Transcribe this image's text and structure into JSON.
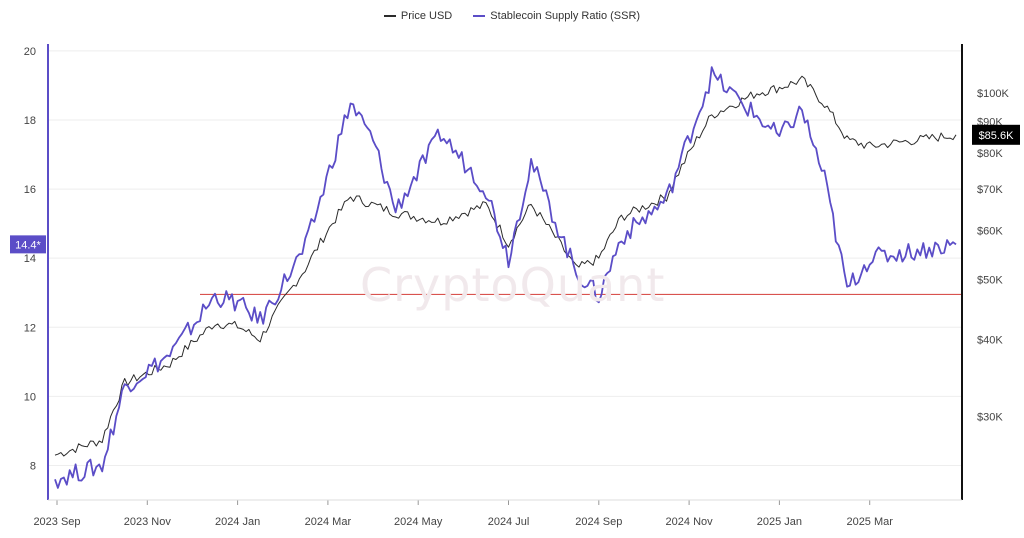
{
  "watermark": "CryptoQuant",
  "colors": {
    "price": "#2b2b2b",
    "ssr": "#5b4dc7",
    "ssr_axis": "#5b4dc7",
    "price_axis": "#111111",
    "reference_line": "#d9534f",
    "grid": "#eeeeee"
  },
  "chart_data": {
    "type": "line",
    "title": "",
    "xlabel": "",
    "ylabel": "",
    "legend_position": "top-center",
    "grid": true,
    "x_ticks": [
      "2023 Sep",
      "2023 Nov",
      "2024 Jan",
      "2024 Mar",
      "2024 May",
      "2024 Jul",
      "2024 Sep",
      "2024 Nov",
      "2025 Jan",
      "2025 Mar"
    ],
    "y_left": {
      "range": [
        7,
        20.2
      ],
      "ticks": [
        "8",
        "10",
        "12",
        "14",
        "16",
        "18",
        "20"
      ]
    },
    "y_right": {
      "scale": "log",
      "range": [
        22000,
        120000
      ],
      "ticks": [
        "$30K",
        "$40K",
        "$50K",
        "$60K",
        "$70K",
        "$80K",
        "$90K",
        "$100K"
      ]
    },
    "current_ssr_label": "14.4*",
    "current_price_label": "$85.6K",
    "reference_line_value": 12.95,
    "series": [
      {
        "name": "Price USD",
        "axis": "right",
        "points": [
          [
            "2023 Sep",
            26000
          ],
          [
            "2023 Oct",
            27500
          ],
          [
            "2023 Oct",
            34000
          ],
          [
            "2023 Nov",
            36500
          ],
          [
            "2023 Dec",
            42500
          ],
          [
            "2024 Jan",
            42000
          ],
          [
            "2024 Jan",
            40000
          ],
          [
            "2024 Feb",
            52000
          ],
          [
            "2024 Mar",
            68000
          ],
          [
            "2024 Apr",
            64000
          ],
          [
            "2024 May",
            62000
          ],
          [
            "2024 Jun",
            66000
          ],
          [
            "2024 Jul",
            57000
          ],
          [
            "2024 Jul",
            66000
          ],
          [
            "2024 Aug",
            52000
          ],
          [
            "2024 Sep",
            54000
          ],
          [
            "2024 Sep",
            63000
          ],
          [
            "2024 Oct",
            68000
          ],
          [
            "2024 Nov",
            92000
          ],
          [
            "2024 Dec",
            100000
          ],
          [
            "2025 Jan",
            102000
          ],
          [
            "2025 Jan",
            105000
          ],
          [
            "2025 Feb",
            96000
          ],
          [
            "2025 Feb",
            84000
          ],
          [
            "2025 Mar",
            82000
          ],
          [
            "2025 Mar",
            85600
          ]
        ]
      },
      {
        "name": "Stablecoin Supply Ratio (SSR)",
        "axis": "left",
        "points": [
          [
            "2023 Sep",
            7.6
          ],
          [
            "2023 Oct",
            8.0
          ],
          [
            "2023 Oct",
            10.3
          ],
          [
            "2023 Nov",
            11.2
          ],
          [
            "2023 Dec",
            12.9
          ],
          [
            "2024 Jan",
            12.7
          ],
          [
            "2024 Jan",
            12.2
          ],
          [
            "2024 Feb",
            14.3
          ],
          [
            "2024 Mar",
            18.5
          ],
          [
            "2024 Apr",
            17.4
          ],
          [
            "2024 Apr",
            15.4
          ],
          [
            "2024 May",
            17.6
          ],
          [
            "2024 Jun",
            16.0
          ],
          [
            "2024 Jul",
            14.0
          ],
          [
            "2024 Jul",
            16.8
          ],
          [
            "2024 Aug",
            13.6
          ],
          [
            "2024 Sep",
            12.9
          ],
          [
            "2024 Sep",
            14.6
          ],
          [
            "2024 Oct",
            15.7
          ],
          [
            "2024 Nov",
            19.3
          ],
          [
            "2024 Dec",
            18.1
          ],
          [
            "2025 Jan",
            17.5
          ],
          [
            "2025 Jan",
            18.3
          ],
          [
            "2025 Feb",
            16.3
          ],
          [
            "2025 Feb",
            13.1
          ],
          [
            "2025 Mar",
            14.0
          ],
          [
            "2025 Mar",
            14.4
          ]
        ]
      }
    ]
  }
}
